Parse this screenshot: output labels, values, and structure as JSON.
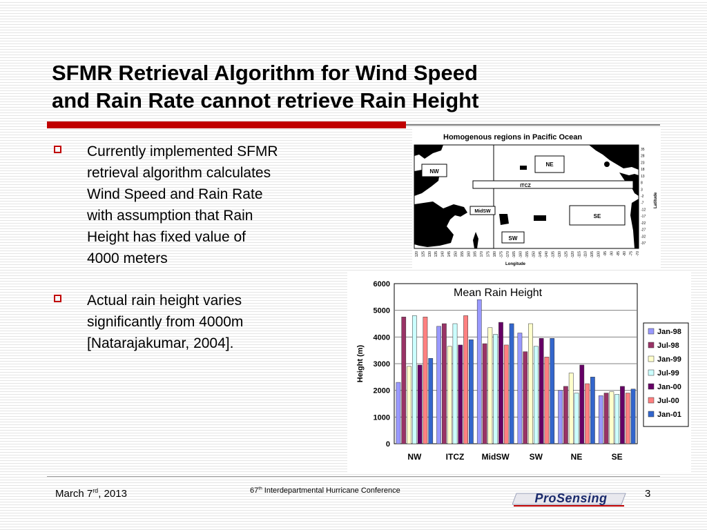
{
  "slide": {
    "title_line1": "SFMR Retrieval Algorithm for Wind Speed",
    "title_line2": "and Rain Rate cannot retrieve Rain Height",
    "bullets": [
      {
        "lines": [
          "Currently implemented SFMR",
          "retrieval algorithm calculates",
          "Wind Speed and Rain Rate",
          "with assumption that Rain",
          "Height has fixed value of",
          "4000 meters"
        ]
      },
      {
        "lines": [
          "Actual rain height varies",
          "significantly from 4000m",
          "[Natarajakumar, 2004]."
        ]
      }
    ],
    "footer": {
      "date_pre": "March 7",
      "date_sup": "rd",
      "date_post": ", 2013",
      "conf_pre": "67",
      "conf_sup": "th",
      "conf_post": " Interdepartmental Hurricane Conference",
      "slide_number": "3",
      "logo_text": "ProSensing"
    },
    "colors": {
      "accent_red": "#c00000",
      "rule_gray": "#808080"
    }
  },
  "map": {
    "title": "Homogenous regions in Pacific Ocean",
    "xlabel": "Longitude",
    "ylabel": "Latitude",
    "regions": [
      "NW",
      "NE",
      "ITCZ",
      "MidSW",
      "SE",
      "SW"
    ],
    "lon_ticks": [
      "120",
      "125",
      "130",
      "135",
      "140",
      "145",
      "150",
      "155",
      "160",
      "165",
      "170",
      "175",
      "180",
      "-175",
      "-170",
      "-165",
      "-160",
      "-155",
      "-150",
      "-145",
      "-140",
      "-135",
      "-130",
      "-125",
      "-120",
      "-115",
      "-110",
      "-105",
      "-100",
      "-95",
      "-90",
      "-85",
      "-80",
      "-75",
      "-70"
    ],
    "lat_ticks": [
      "35",
      "28",
      "23",
      "18",
      "13",
      "8",
      "3",
      "-2",
      "-7",
      "-12",
      "-17",
      "-22",
      "-27",
      "-32",
      "-37"
    ]
  },
  "chart_data": {
    "type": "bar",
    "title": "Mean Rain Height",
    "xlabel": "",
    "ylabel": "Height (m)",
    "ylim": [
      0,
      6000
    ],
    "yticks": [
      "0",
      "1000",
      "2000",
      "3000",
      "4000",
      "5000",
      "6000"
    ],
    "grid": true,
    "legend_position": "right",
    "categories": [
      "NW",
      "ITCZ",
      "MidSW",
      "SW",
      "NE",
      "SE"
    ],
    "series": [
      {
        "name": "Jan-98",
        "color": "#9999ff",
        "values": [
          2300,
          4400,
          5400,
          4150,
          2000,
          1800
        ]
      },
      {
        "name": "Jul-98",
        "color": "#993366",
        "values": [
          4750,
          4500,
          3750,
          3450,
          2150,
          1900
        ]
      },
      {
        "name": "Jan-99",
        "color": "#ffffcc",
        "values": [
          2900,
          3650,
          4350,
          4500,
          2650,
          1950
        ]
      },
      {
        "name": "Jul-99",
        "color": "#ccffff",
        "values": [
          4800,
          4500,
          4100,
          3650,
          1900,
          1850
        ]
      },
      {
        "name": "Jan-00",
        "color": "#660066",
        "values": [
          2950,
          3700,
          4550,
          3950,
          2950,
          2150
        ]
      },
      {
        "name": "Jul-00",
        "color": "#ff8080",
        "values": [
          4750,
          4800,
          3700,
          3250,
          2250,
          1900
        ]
      },
      {
        "name": "Jan-01",
        "color": "#3366cc",
        "values": [
          3200,
          3900,
          4500,
          3950,
          2500,
          2050
        ]
      }
    ]
  }
}
